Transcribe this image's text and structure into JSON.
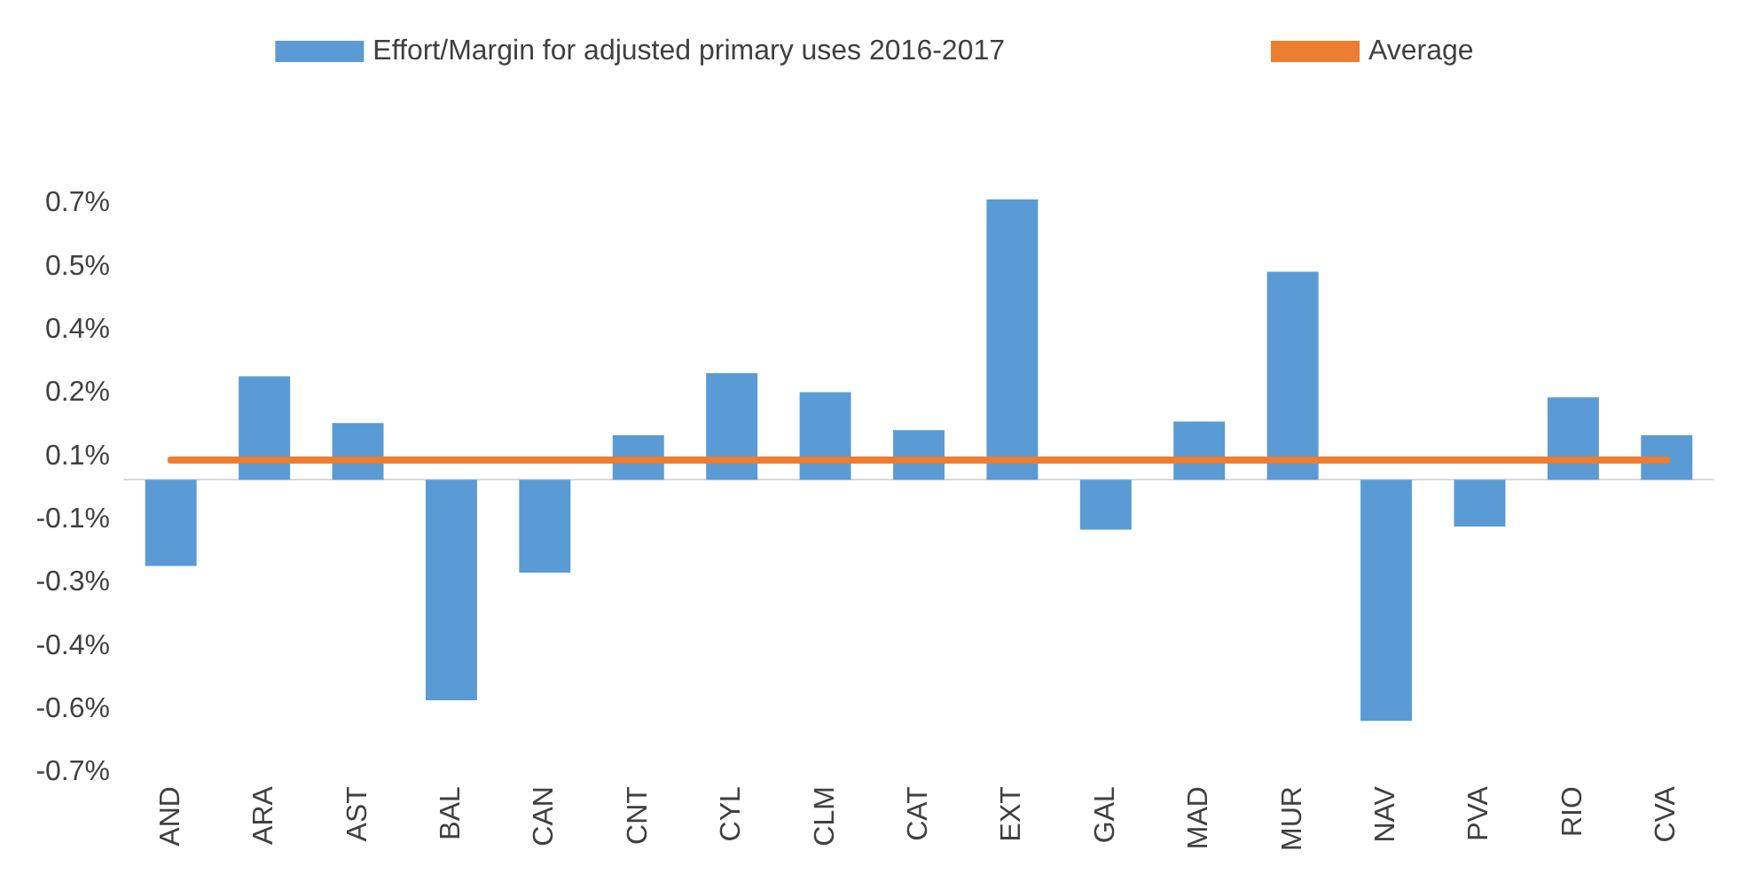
{
  "chart_data": {
    "type": "bar",
    "categories": [
      "AND",
      "ARA",
      "AST",
      "BAL",
      "CAN",
      "CNT",
      "CYL",
      "CLM",
      "CAT",
      "EXT",
      "GAL",
      "MAD",
      "MUR",
      "NAV",
      "PVA",
      "RIO",
      "CVA"
    ],
    "series": [
      {
        "name": "Effort/Margin for adjusted primary uses 2016-2017",
        "color": "#5b9bd5",
        "values": [
          -0.218,
          0.262,
          0.144,
          -0.558,
          -0.235,
          0.113,
          0.27,
          0.222,
          0.126,
          0.71,
          -0.126,
          0.148,
          0.527,
          -0.61,
          -0.118,
          0.209,
          0.113
        ]
      },
      {
        "name": "Average",
        "type": "line",
        "color": "#ed7d31",
        "marker": "none",
        "values": [
          0.05,
          0.05,
          0.05,
          0.05,
          0.05,
          0.05,
          0.05,
          0.05,
          0.05,
          0.05,
          0.05,
          0.05,
          0.05,
          0.05,
          0.05,
          0.05,
          0.05
        ]
      }
    ],
    "ylim": [
      -0.74,
      0.73
    ],
    "yticks": [
      {
        "value": 0.7,
        "label": "0.7%"
      },
      {
        "value": 0.54,
        "label": "0.5%"
      },
      {
        "value": 0.38,
        "label": "0.4%"
      },
      {
        "value": 0.22,
        "label": "0.2%"
      },
      {
        "value": 0.06,
        "label": "0.1%"
      },
      {
        "value": -0.1,
        "label": "-0.1%"
      },
      {
        "value": -0.26,
        "label": "-0.3%"
      },
      {
        "value": -0.42,
        "label": "-0.4%"
      },
      {
        "value": -0.58,
        "label": "-0.6%"
      },
      {
        "value": -0.74,
        "label": "-0.7%"
      }
    ],
    "legend": "top",
    "grid": false
  }
}
